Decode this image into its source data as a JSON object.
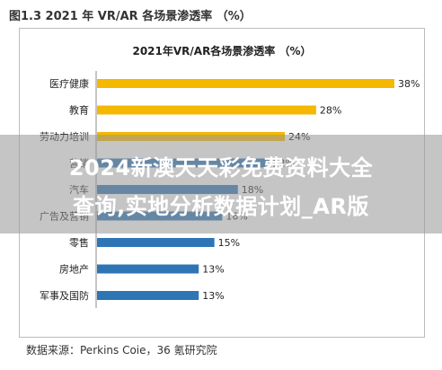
{
  "figure_title": "图1.3 2021 年 VR/AR 各场景渗透率 （%）",
  "source_text": "数据来源：Perkins Coie，36 氪研究院",
  "overlay": {
    "line1": "2024新澳天天彩免费资料大全",
    "line2": "查询,实地分析数据计划_AR版"
  },
  "colors": {
    "highlight": "#f5b800",
    "standard": "#2e75b6"
  },
  "chart_data": {
    "type": "bar",
    "orientation": "horizontal",
    "title": "2021年VR/AR各场景渗透率 （%）",
    "categories": [
      "医疗健康",
      "教育",
      "劳动力培训",
      "营销",
      "汽车",
      "广告及营销",
      "零售",
      "房地产",
      "军事及国防"
    ],
    "values": [
      38,
      28,
      24,
      22,
      18,
      16,
      15,
      13,
      13
    ],
    "value_labels": [
      "38%",
      "28%",
      "24%",
      "22%",
      "18%",
      "16%",
      "15%",
      "13%",
      "13%"
    ],
    "highlight_count": 3,
    "xlim": [
      0,
      38
    ],
    "grid": false,
    "legend": "none"
  }
}
